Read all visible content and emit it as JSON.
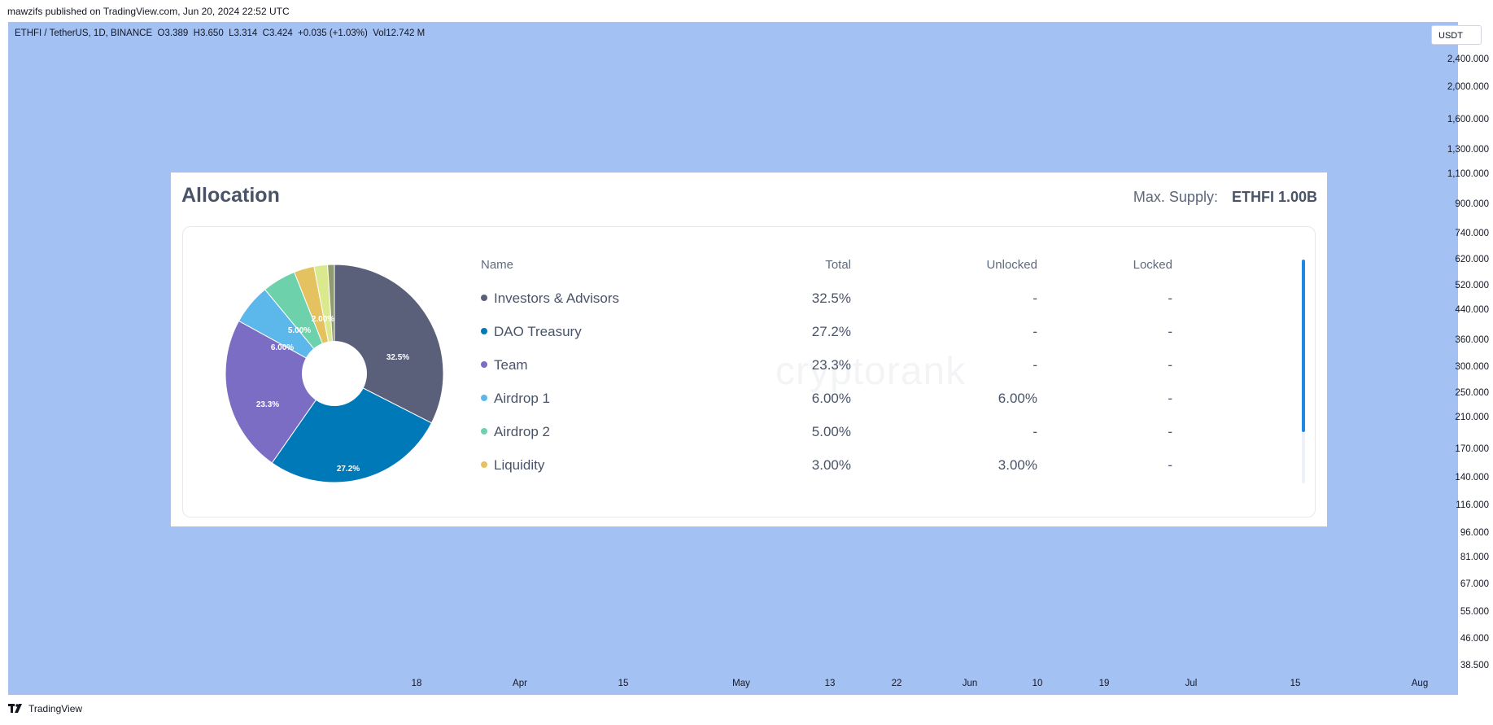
{
  "publish_line": "mawzifs published on TradingView.com, Jun 20, 2024 22:52 UTC",
  "symbol_line": "ETHFI / TetherUS, 1D, BINANCE  O3.389  H3.650  L3.314  C3.424  +0.035 (+1.03%)  Vol12.742 M",
  "currency": "USDT",
  "price_axis": [
    "2,400.000",
    "2,000.000",
    "1,600.000",
    "1,300.000",
    "1,100.000",
    "900.000",
    "740.000",
    "620.000",
    "520.000",
    "440.000",
    "360.000",
    "300.000",
    "250.000",
    "210.000",
    "170.000",
    "140.000",
    "116.000",
    "96.000",
    "81.000",
    "67.000",
    "55.000",
    "46.000",
    "38.500"
  ],
  "time_axis": [
    "18",
    "Apr",
    "15",
    "May",
    "13",
    "22",
    "Jun",
    "10",
    "19",
    "Jul",
    "15",
    "Aug"
  ],
  "footer": "TradingView",
  "card": {
    "title": "Allocation",
    "supply_label": "Max. Supply:",
    "supply_value": "ETHFI 1.00B",
    "watermark": "cryptorank",
    "headers": {
      "name": "Name",
      "total": "Total",
      "unlocked": "Unlocked",
      "locked": "Locked"
    },
    "rows": [
      {
        "name": "Investors & Advisors",
        "total": "32.5%",
        "unlocked": "-",
        "locked": "-",
        "color": "#5a6079"
      },
      {
        "name": "DAO Treasury",
        "total": "27.2%",
        "unlocked": "-",
        "locked": "-",
        "color": "#0079b8"
      },
      {
        "name": "Team",
        "total": "23.3%",
        "unlocked": "-",
        "locked": "-",
        "color": "#7b6cc4"
      },
      {
        "name": "Airdrop 1",
        "total": "6.00%",
        "unlocked": "6.00%",
        "locked": "-",
        "color": "#5cb8ea"
      },
      {
        "name": "Airdrop 2",
        "total": "5.00%",
        "unlocked": "-",
        "locked": "-",
        "color": "#6dd2ab"
      },
      {
        "name": "Liquidity",
        "total": "3.00%",
        "unlocked": "3.00%",
        "locked": "-",
        "color": "#e3c25f"
      }
    ],
    "pie_labels": [
      "32.5%",
      "27.2%",
      "23.3%",
      "6.00%",
      "5.00%",
      "2.00%"
    ]
  },
  "chart_data": {
    "type": "pie",
    "title": "Allocation",
    "categories": [
      "Investors & Advisors",
      "DAO Treasury",
      "Team",
      "Airdrop 1",
      "Airdrop 2",
      "Liquidity",
      "(unlisted)",
      "(unlisted)"
    ],
    "values": [
      32.5,
      27.2,
      23.3,
      6.0,
      5.0,
      3.0,
      2.0,
      1.0
    ],
    "colors": [
      "#5a6079",
      "#0079b8",
      "#7b6cc4",
      "#5cb8ea",
      "#6dd2ab",
      "#e3c25f",
      "#dbe98e",
      "#8f9a6f"
    ]
  }
}
